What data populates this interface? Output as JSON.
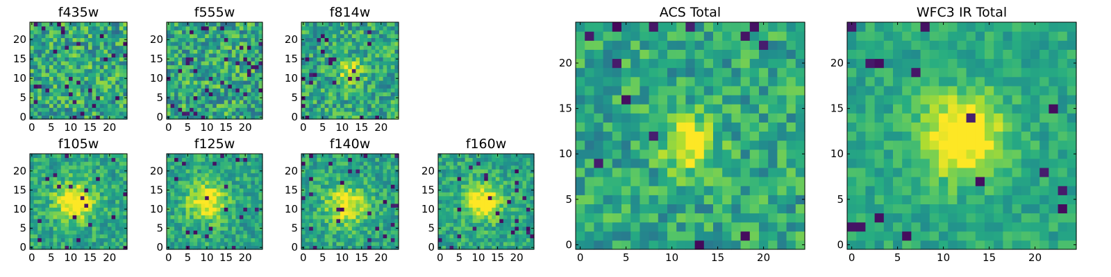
{
  "colormap": "viridis",
  "colors": [
    "#440154",
    "#3b528b",
    "#21908d",
    "#5dc962",
    "#fde725"
  ],
  "chart_data": [
    {
      "type": "heatmap",
      "title": "f435w",
      "grid_size": 25,
      "xlim": [
        0,
        24
      ],
      "ylim": [
        0,
        24
      ],
      "x_ticks": [
        0,
        5,
        10,
        15,
        20
      ],
      "y_ticks": [
        0,
        5,
        10,
        15,
        20
      ],
      "seed": 11,
      "peak": [
        12,
        11
      ],
      "peak_strength": 0.05,
      "peak_width": 3.0,
      "noise": 0.45,
      "dark_fraction": 0.04
    },
    {
      "type": "heatmap",
      "title": "f555w",
      "grid_size": 25,
      "xlim": [
        0,
        24
      ],
      "ylim": [
        0,
        24
      ],
      "x_ticks": [
        0,
        5,
        10,
        15,
        20
      ],
      "y_ticks": [
        0,
        5,
        10,
        15,
        20
      ],
      "seed": 23,
      "peak": [
        12,
        12
      ],
      "peak_strength": 0.03,
      "peak_width": 3.0,
      "noise": 0.45,
      "dark_fraction": 0.05
    },
    {
      "type": "heatmap",
      "title": "f814w",
      "grid_size": 25,
      "xlim": [
        0,
        24
      ],
      "ylim": [
        0,
        24
      ],
      "x_ticks": [
        0,
        5,
        10,
        15,
        20
      ],
      "y_ticks": [
        0,
        5,
        10,
        15,
        20
      ],
      "seed": 37,
      "peak": [
        12,
        12
      ],
      "peak_strength": 0.35,
      "peak_width": 2.2,
      "noise": 0.4,
      "dark_fraction": 0.04
    },
    {
      "type": "heatmap",
      "title": "f105w",
      "grid_size": 25,
      "xlim": [
        0,
        24
      ],
      "ylim": [
        0,
        24
      ],
      "x_ticks": [
        0,
        5,
        10,
        15,
        20
      ],
      "y_ticks": [
        0,
        5,
        10,
        15,
        20
      ],
      "seed": 41,
      "peak": [
        11,
        12
      ],
      "peak_strength": 0.5,
      "peak_width": 3.5,
      "noise": 0.3,
      "dark_fraction": 0.03
    },
    {
      "type": "heatmap",
      "title": "f125w",
      "grid_size": 25,
      "xlim": [
        0,
        24
      ],
      "ylim": [
        0,
        24
      ],
      "x_ticks": [
        0,
        5,
        10,
        15,
        20
      ],
      "y_ticks": [
        0,
        5,
        10,
        15,
        20
      ],
      "seed": 53,
      "peak": [
        10,
        12
      ],
      "peak_strength": 0.45,
      "peak_width": 3.5,
      "noise": 0.3,
      "dark_fraction": 0.04
    },
    {
      "type": "heatmap",
      "title": "f140w",
      "grid_size": 25,
      "xlim": [
        0,
        24
      ],
      "ylim": [
        0,
        24
      ],
      "x_ticks": [
        0,
        5,
        10,
        15,
        20
      ],
      "y_ticks": [
        0,
        5,
        10,
        15,
        20
      ],
      "seed": 67,
      "peak": [
        11,
        11
      ],
      "peak_strength": 0.45,
      "peak_width": 3.5,
      "noise": 0.3,
      "dark_fraction": 0.04
    },
    {
      "type": "heatmap",
      "title": "f160w",
      "grid_size": 25,
      "xlim": [
        0,
        24
      ],
      "ylim": [
        0,
        24
      ],
      "x_ticks": [
        0,
        5,
        10,
        15,
        20
      ],
      "y_ticks": [
        0,
        5,
        10,
        15,
        20
      ],
      "seed": 79,
      "peak": [
        11,
        12
      ],
      "peak_strength": 0.5,
      "peak_width": 3.2,
      "noise": 0.3,
      "dark_fraction": 0.04
    },
    {
      "type": "heatmap",
      "title": "ACS Total",
      "grid_size": 25,
      "xlim": [
        0,
        24
      ],
      "ylim": [
        0,
        24
      ],
      "x_ticks": [
        0,
        5,
        10,
        15,
        20
      ],
      "y_ticks": [
        0,
        5,
        10,
        15,
        20
      ],
      "seed": 97,
      "peak": [
        12,
        11
      ],
      "peak_strength": 0.45,
      "peak_width": 2.0,
      "noise": 0.35,
      "dark_fraction": 0.025
    },
    {
      "type": "heatmap",
      "title": "WFC3 IR Total",
      "grid_size": 25,
      "xlim": [
        0,
        24
      ],
      "ylim": [
        0,
        24
      ],
      "x_ticks": [
        0,
        5,
        10,
        15,
        20
      ],
      "y_ticks": [
        0,
        5,
        10,
        15,
        20
      ],
      "seed": 113,
      "peak": [
        12,
        12
      ],
      "peak_strength": 0.55,
      "peak_width": 3.2,
      "noise": 0.22,
      "dark_fraction": 0.02
    }
  ]
}
